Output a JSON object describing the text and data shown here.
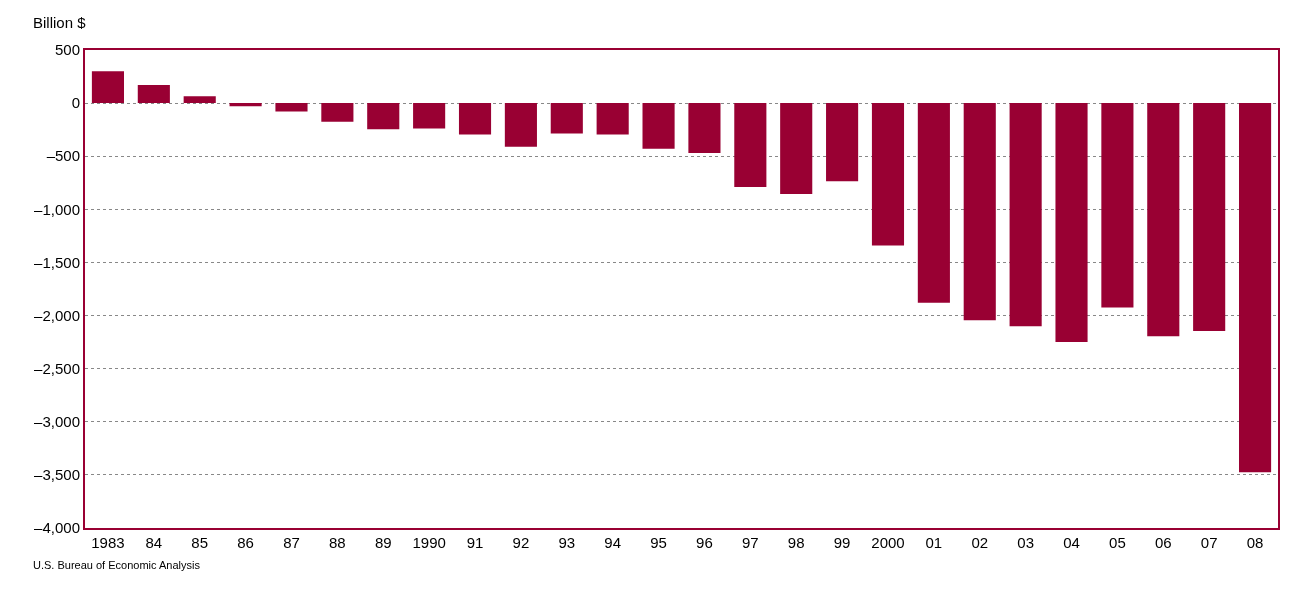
{
  "chart_data": {
    "type": "bar",
    "ylabel": "Billion $",
    "categories": [
      "1983",
      "84",
      "85",
      "86",
      "87",
      "88",
      "89",
      "1990",
      "91",
      "92",
      "93",
      "94",
      "95",
      "96",
      "97",
      "98",
      "99",
      "2000",
      "01",
      "02",
      "03",
      "04",
      "05",
      "06",
      "07",
      "08"
    ],
    "values": [
      300,
      170,
      65,
      -30,
      -80,
      -175,
      -245,
      -240,
      -295,
      -410,
      -285,
      -295,
      -430,
      -470,
      -790,
      -855,
      -735,
      -1340,
      -1880,
      -2045,
      -2100,
      -2250,
      -1925,
      -2195,
      -2145,
      -3475
    ],
    "color": "#990033",
    "ylim": [
      -4000,
      500
    ],
    "yticks": [
      {
        "value": -4000,
        "label": "–4,000"
      },
      {
        "value": -3500,
        "label": "–3,500"
      },
      {
        "value": -3000,
        "label": "–3,000"
      },
      {
        "value": -2500,
        "label": "–2,500"
      },
      {
        "value": -2000,
        "label": "–2,000"
      },
      {
        "value": -1500,
        "label": "–1,500"
      },
      {
        "value": -1000,
        "label": "–1,000"
      },
      {
        "value": -500,
        "label": "–500"
      },
      0,
      500
    ],
    "grid": "y",
    "annotations": [
      "U.S. Bureau of Economic Analysis"
    ]
  }
}
